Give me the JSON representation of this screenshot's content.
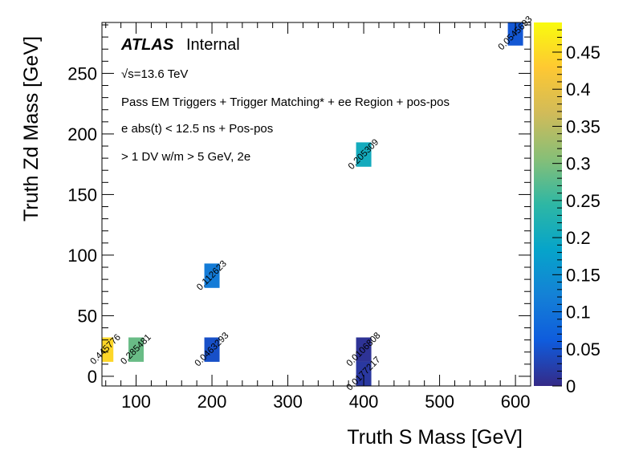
{
  "chart_data": {
    "type": "heatmap",
    "xlabel": "Truth S Mass [GeV]",
    "ylabel": "Truth Zd Mass [GeV]",
    "xlim": [
      55,
      620
    ],
    "ylim": [
      -8,
      292
    ],
    "zlim": [
      0,
      0.49
    ],
    "x_ticks": [
      "100",
      "200",
      "300",
      "400",
      "500",
      "600"
    ],
    "y_ticks": [
      "0",
      "50",
      "100",
      "150",
      "200",
      "250"
    ],
    "z_ticks": [
      "0",
      "0.05",
      "0.1",
      "0.15",
      "0.2",
      "0.25",
      "0.3",
      "0.35",
      "0.4",
      "0.45"
    ],
    "cells": [
      {
        "x": 60,
        "y": 22,
        "value": 0.445776,
        "label": "0.445776"
      },
      {
        "x": 100,
        "y": 22,
        "value": 0.285481,
        "label": "0.285481"
      },
      {
        "x": 200,
        "y": 22,
        "value": 0.0463293,
        "label": "0.0463293"
      },
      {
        "x": 200,
        "y": 83,
        "value": 0.112623,
        "label": "0.112623"
      },
      {
        "x": 400,
        "y": 183,
        "value": 0.205309,
        "label": "0.205309"
      },
      {
        "x": 400,
        "y": 22,
        "value": 0.0106808,
        "label": "0.0106808"
      },
      {
        "x": 400,
        "y": 2,
        "value": 0.0177217,
        "label": "0.0177217"
      },
      {
        "x": 600,
        "y": 283,
        "value": 0.0545693,
        "label": "0.0545693"
      }
    ],
    "colormap": [
      "#352a87",
      "#0f5cdd",
      "#1481d6",
      "#06a4ca",
      "#2eb7a4",
      "#87bf77",
      "#d1bb59",
      "#fec832",
      "#f9fb0e"
    ]
  },
  "annotations": {
    "atlas": "ATLAS",
    "internal": "Internal",
    "energy": "√s=13.6 TeV",
    "line1": "Pass EM Triggers + Trigger Matching* + ee Region + pos-pos",
    "line2": "e abs(t) < 12.5 ns + Pos-pos",
    "line3": "> 1 DV w/m > 5 GeV, 2e"
  }
}
